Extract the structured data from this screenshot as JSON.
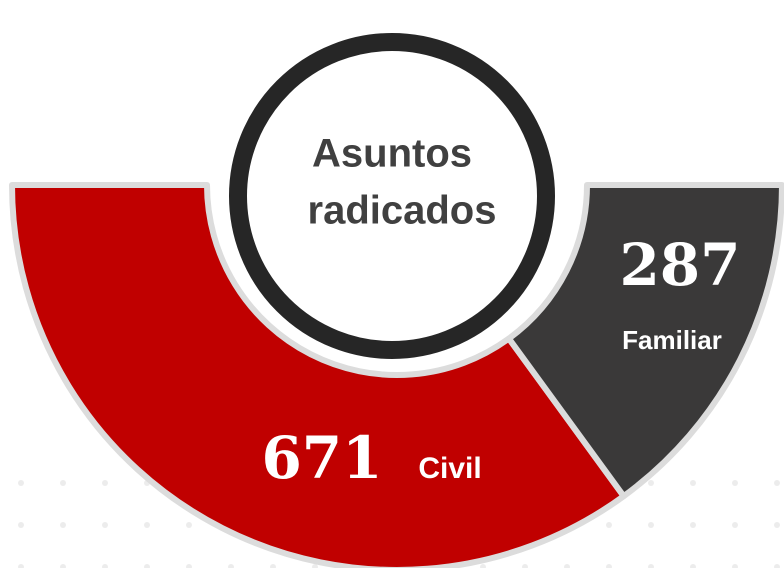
{
  "chart_data": {
    "type": "half-donut",
    "title": [
      "Asuntos",
      "radicados"
    ],
    "categories": [
      "Civil",
      "Familiar"
    ],
    "values": [
      671,
      287
    ],
    "colors": [
      "#c00000",
      "#3a3939"
    ]
  }
}
